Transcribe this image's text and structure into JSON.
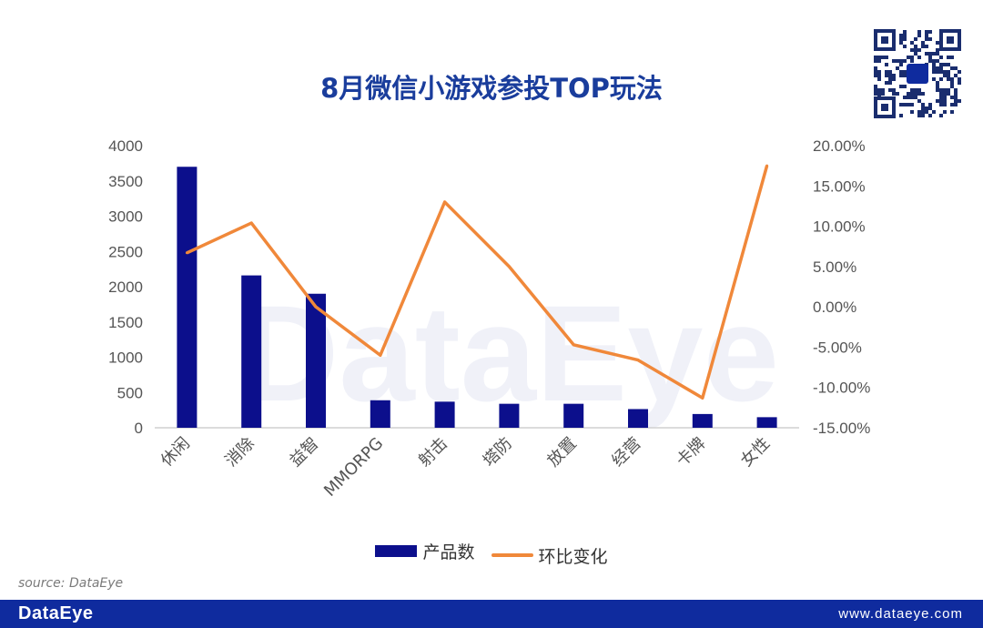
{
  "title": "8月微信小游戏参投TOP玩法",
  "source": "source: DataEye",
  "footer": {
    "brand": "DataEye",
    "url": "www.dataeye.com"
  },
  "colors": {
    "bar": "#0c0f8c",
    "line": "#f0883a",
    "title": "#1a3d9c",
    "footer": "#0f2b9e"
  },
  "chart_data": {
    "type": "bar",
    "categories": [
      "休闲",
      "消除",
      "益智",
      "MMORPG",
      "射击",
      "塔防",
      "放置",
      "经营",
      "卡牌",
      "女性"
    ],
    "series": [
      {
        "name": "产品数",
        "type": "bar",
        "axis": "left",
        "values": [
          3700,
          2160,
          1900,
          390,
          370,
          340,
          340,
          265,
          195,
          150
        ]
      },
      {
        "name": "环比变化",
        "type": "line",
        "axis": "right",
        "values": [
          6.7,
          10.4,
          0.0,
          -6.0,
          13.0,
          5.0,
          -4.7,
          -6.6,
          -11.3,
          17.5
        ]
      }
    ],
    "y_left": {
      "range": [
        0,
        4000
      ],
      "ticks": [
        "0",
        "500",
        "1000",
        "1500",
        "2000",
        "2500",
        "3000",
        "3500",
        "4000"
      ]
    },
    "y_right": {
      "range": [
        -15,
        20
      ],
      "ticks": [
        "-15.00%",
        "-10.00%",
        "-5.00%",
        "0.00%",
        "5.00%",
        "10.00%",
        "15.00%",
        "20.00%"
      ]
    },
    "legend_position": "bottom",
    "grid": false
  }
}
